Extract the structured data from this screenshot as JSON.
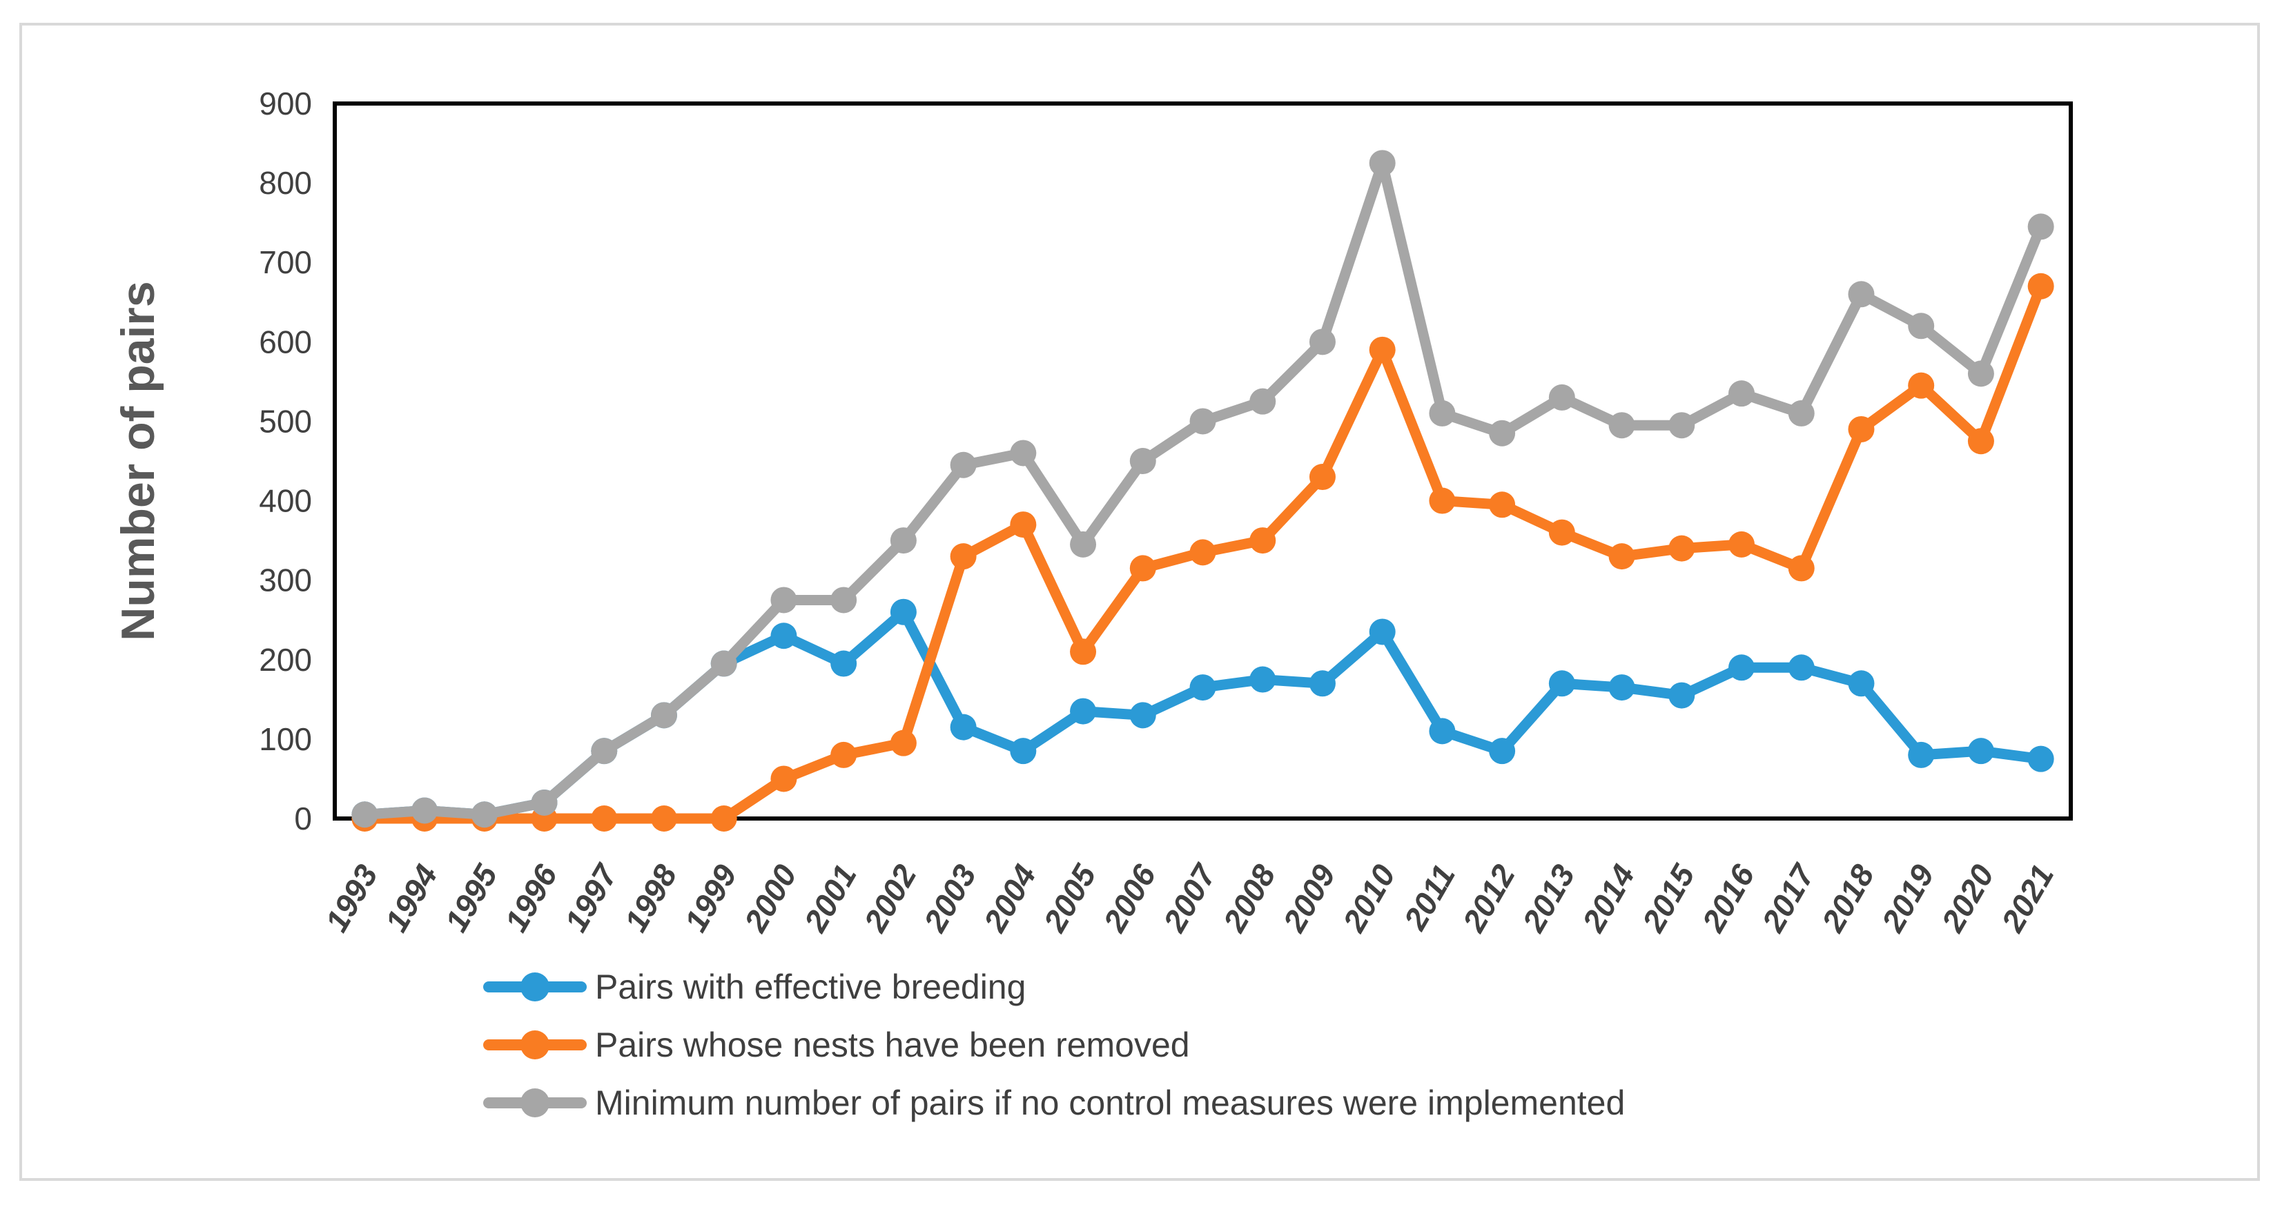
{
  "chart_data": {
    "type": "line",
    "title": "",
    "xlabel": "",
    "ylabel": "Number of pairs",
    "ylim": [
      0,
      900
    ],
    "y_tick_step": 100,
    "y_ticks": [
      0,
      100,
      200,
      300,
      400,
      500,
      600,
      700,
      800,
      900
    ],
    "grid": false,
    "legend_position": "bottom-left",
    "plot_border_color": "#000000",
    "categories": [
      "1993",
      "1994",
      "1995",
      "1996",
      "1997",
      "1998",
      "1999",
      "2000",
      "2001",
      "2002",
      "2003",
      "2004",
      "2005",
      "2006",
      "2007",
      "2008",
      "2009",
      "2010",
      "2011",
      "2012",
      "2013",
      "2014",
      "2015",
      "2016",
      "2017",
      "2018",
      "2019",
      "2020",
      "2021"
    ],
    "series": [
      {
        "name": "Pairs with effective breeding",
        "color": "#2b9ad6",
        "values": [
          5,
          10,
          5,
          20,
          85,
          130,
          195,
          230,
          195,
          260,
          115,
          85,
          135,
          130,
          165,
          175,
          170,
          235,
          110,
          85,
          170,
          165,
          155,
          190,
          190,
          170,
          80,
          85,
          75
        ]
      },
      {
        "name": "Pairs whose nests have been removed",
        "color": "#f97c22",
        "values": [
          0,
          0,
          0,
          0,
          0,
          0,
          0,
          50,
          80,
          95,
          330,
          370,
          210,
          315,
          335,
          350,
          430,
          590,
          400,
          395,
          360,
          330,
          340,
          345,
          315,
          490,
          545,
          475,
          670
        ]
      },
      {
        "name": "Minimum number of pairs if no control measures were implemented",
        "color": "#a6a6a6",
        "values": [
          5,
          10,
          5,
          20,
          85,
          130,
          195,
          275,
          275,
          350,
          445,
          460,
          345,
          450,
          500,
          525,
          600,
          825,
          510,
          485,
          530,
          495,
          495,
          535,
          510,
          660,
          620,
          560,
          745
        ]
      }
    ],
    "text_color": "#404040",
    "axis_title_color": "#595959"
  }
}
